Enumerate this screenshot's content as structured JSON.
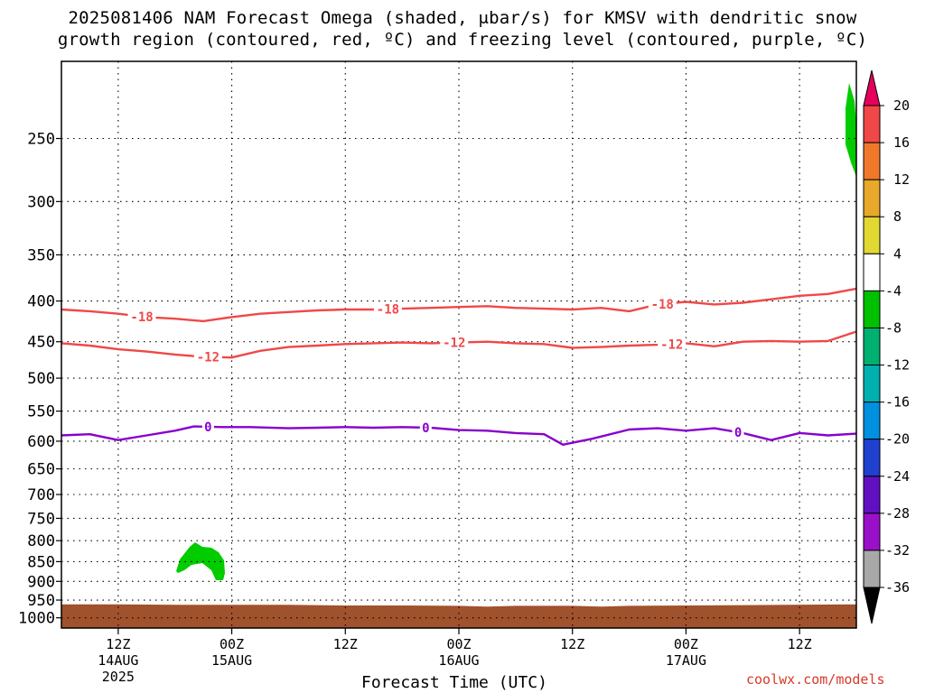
{
  "title_line1": "2025081406 NAM Forecast Omega (shaded, μbar/s) for KMSV with dendritic snow",
  "title_line2": "growth region (contoured, red, ºC) and freezing level (contoured, purple, ºC)",
  "credit": "coolwx.com/models",
  "chart_data": {
    "type": "contour-time-height",
    "xlabel": "Forecast Time (UTC)",
    "ylabel": "",
    "x_range_hours": [
      0,
      84
    ],
    "y_axis": "pressure (hPa), log scale, inverted",
    "ylim": [
      200,
      1030
    ],
    "grid": true,
    "y_ticks": [
      250,
      300,
      350,
      400,
      450,
      500,
      550,
      600,
      650,
      700,
      750,
      800,
      850,
      900,
      950,
      1000
    ],
    "x_ticks": [
      {
        "h": 6,
        "labels": [
          "12Z",
          "14AUG",
          "2025"
        ]
      },
      {
        "h": 18,
        "labels": [
          "00Z",
          "15AUG"
        ]
      },
      {
        "h": 30,
        "labels": [
          "12Z"
        ]
      },
      {
        "h": 42,
        "labels": [
          "00Z",
          "16AUG"
        ]
      },
      {
        "h": 54,
        "labels": [
          "12Z"
        ]
      },
      {
        "h": 66,
        "labels": [
          "00Z",
          "17AUG"
        ]
      },
      {
        "h": 78,
        "labels": [
          "12Z"
        ]
      }
    ],
    "contours": [
      {
        "value": -18,
        "label": "-18",
        "color": "#f04848",
        "x": [
          0,
          3,
          6,
          9,
          12,
          15,
          18,
          21,
          24,
          27,
          30,
          33,
          36,
          39,
          42,
          45,
          48,
          51,
          54,
          57,
          60,
          63,
          66,
          69,
          72,
          75,
          78,
          81,
          84
        ],
        "y": [
          410,
          412,
          415,
          419,
          421,
          424,
          419,
          415,
          413,
          411,
          410,
          410,
          409,
          408,
          407,
          406,
          408,
          409,
          410,
          408,
          412,
          404,
          401,
          404,
          402,
          398,
          394,
          392,
          386
        ],
        "label_x": [
          8.5,
          34.5,
          63.5
        ]
      },
      {
        "value": -12,
        "label": "-12",
        "color": "#f04848",
        "x": [
          0,
          3,
          6,
          9,
          12,
          15,
          18,
          21,
          24,
          27,
          30,
          33,
          36,
          39,
          42,
          45,
          48,
          51,
          54,
          57,
          60,
          63,
          66,
          69,
          72,
          75,
          78,
          81,
          84
        ],
        "y": [
          452,
          455,
          460,
          463,
          467,
          470,
          471,
          462,
          457,
          455,
          453,
          452,
          451,
          452,
          451,
          450,
          452,
          453,
          458,
          457,
          455,
          454,
          452,
          456,
          450,
          449,
          450,
          449,
          437
        ],
        "label_x": [
          15.5,
          41.5,
          64.5
        ]
      },
      {
        "value": 0,
        "label": "0",
        "color": "#8800cc",
        "x": [
          0,
          3,
          6,
          9,
          12,
          14,
          17,
          20,
          24,
          27,
          30,
          33,
          36,
          39,
          42,
          45,
          48,
          51,
          53,
          56,
          60,
          63,
          66,
          69,
          72,
          75,
          78,
          81,
          84
        ],
        "y": [
          590,
          588,
          598,
          590,
          582,
          575,
          576,
          576,
          578,
          577,
          576,
          577,
          576,
          577,
          581,
          582,
          586,
          588,
          606,
          596,
          580,
          578,
          582,
          578,
          586,
          598,
          586,
          590,
          587
        ],
        "label_x": [
          15.5,
          38.5,
          71.5
        ]
      }
    ],
    "omega_shading": [
      {
        "range": "-8 to -4",
        "color": "#00cc00",
        "region": "near 850-900 hPa around hours 12-17"
      },
      {
        "range": "-8 to -4",
        "color": "#00cc00",
        "region": "near 230-290 hPa at hour 84"
      }
    ],
    "terrain": {
      "color": "#a0522d",
      "top_hpa_approx": 960
    },
    "colorbar": {
      "labels": [
        "20",
        "16",
        "12",
        "8",
        "4",
        "-4",
        "-8",
        "-12",
        "-16",
        "-20",
        "-24",
        "-28",
        "-32",
        "-36"
      ],
      "colors": [
        "#e6005c",
        "#f04848",
        "#f0782a",
        "#e8a82a",
        "#e2d832",
        "#ffffff",
        "#00c000",
        "#00b070",
        "#00b0b0",
        "#0090e0",
        "#2040d0",
        "#6010c0",
        "#9a10c8",
        "#a8a8a8",
        "#000000"
      ]
    }
  }
}
